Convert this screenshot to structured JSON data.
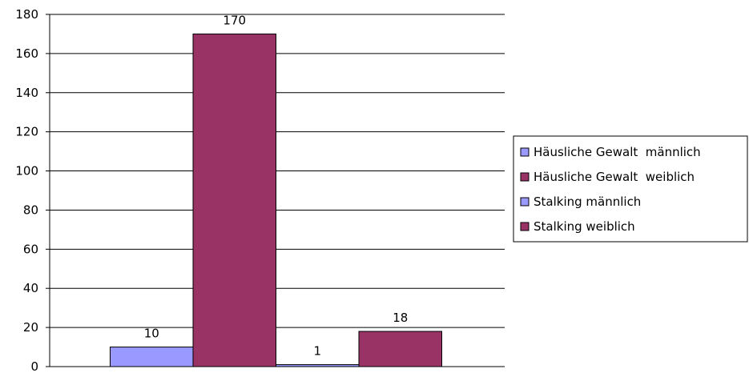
{
  "chart_data": {
    "type": "bar",
    "categories": [
      ""
    ],
    "series": [
      {
        "name": "Häusliche Gewalt  männlich",
        "values": [
          10
        ],
        "color": "#9999ff"
      },
      {
        "name": "Häusliche Gewalt  weiblich",
        "values": [
          170
        ],
        "color": "#993366"
      },
      {
        "name": "Stalking männlich",
        "values": [
          1
        ],
        "color": "#9999ff"
      },
      {
        "name": "Stalking weiblich",
        "values": [
          18
        ],
        "color": "#993366"
      }
    ],
    "ylim": [
      0,
      180
    ],
    "yticks": [
      "0",
      "20",
      "40",
      "60",
      "80",
      "100",
      "120",
      "140",
      "160",
      "180"
    ],
    "data_labels": [
      "10",
      "170",
      "1",
      "18"
    ],
    "grid": true,
    "legend": "right"
  }
}
